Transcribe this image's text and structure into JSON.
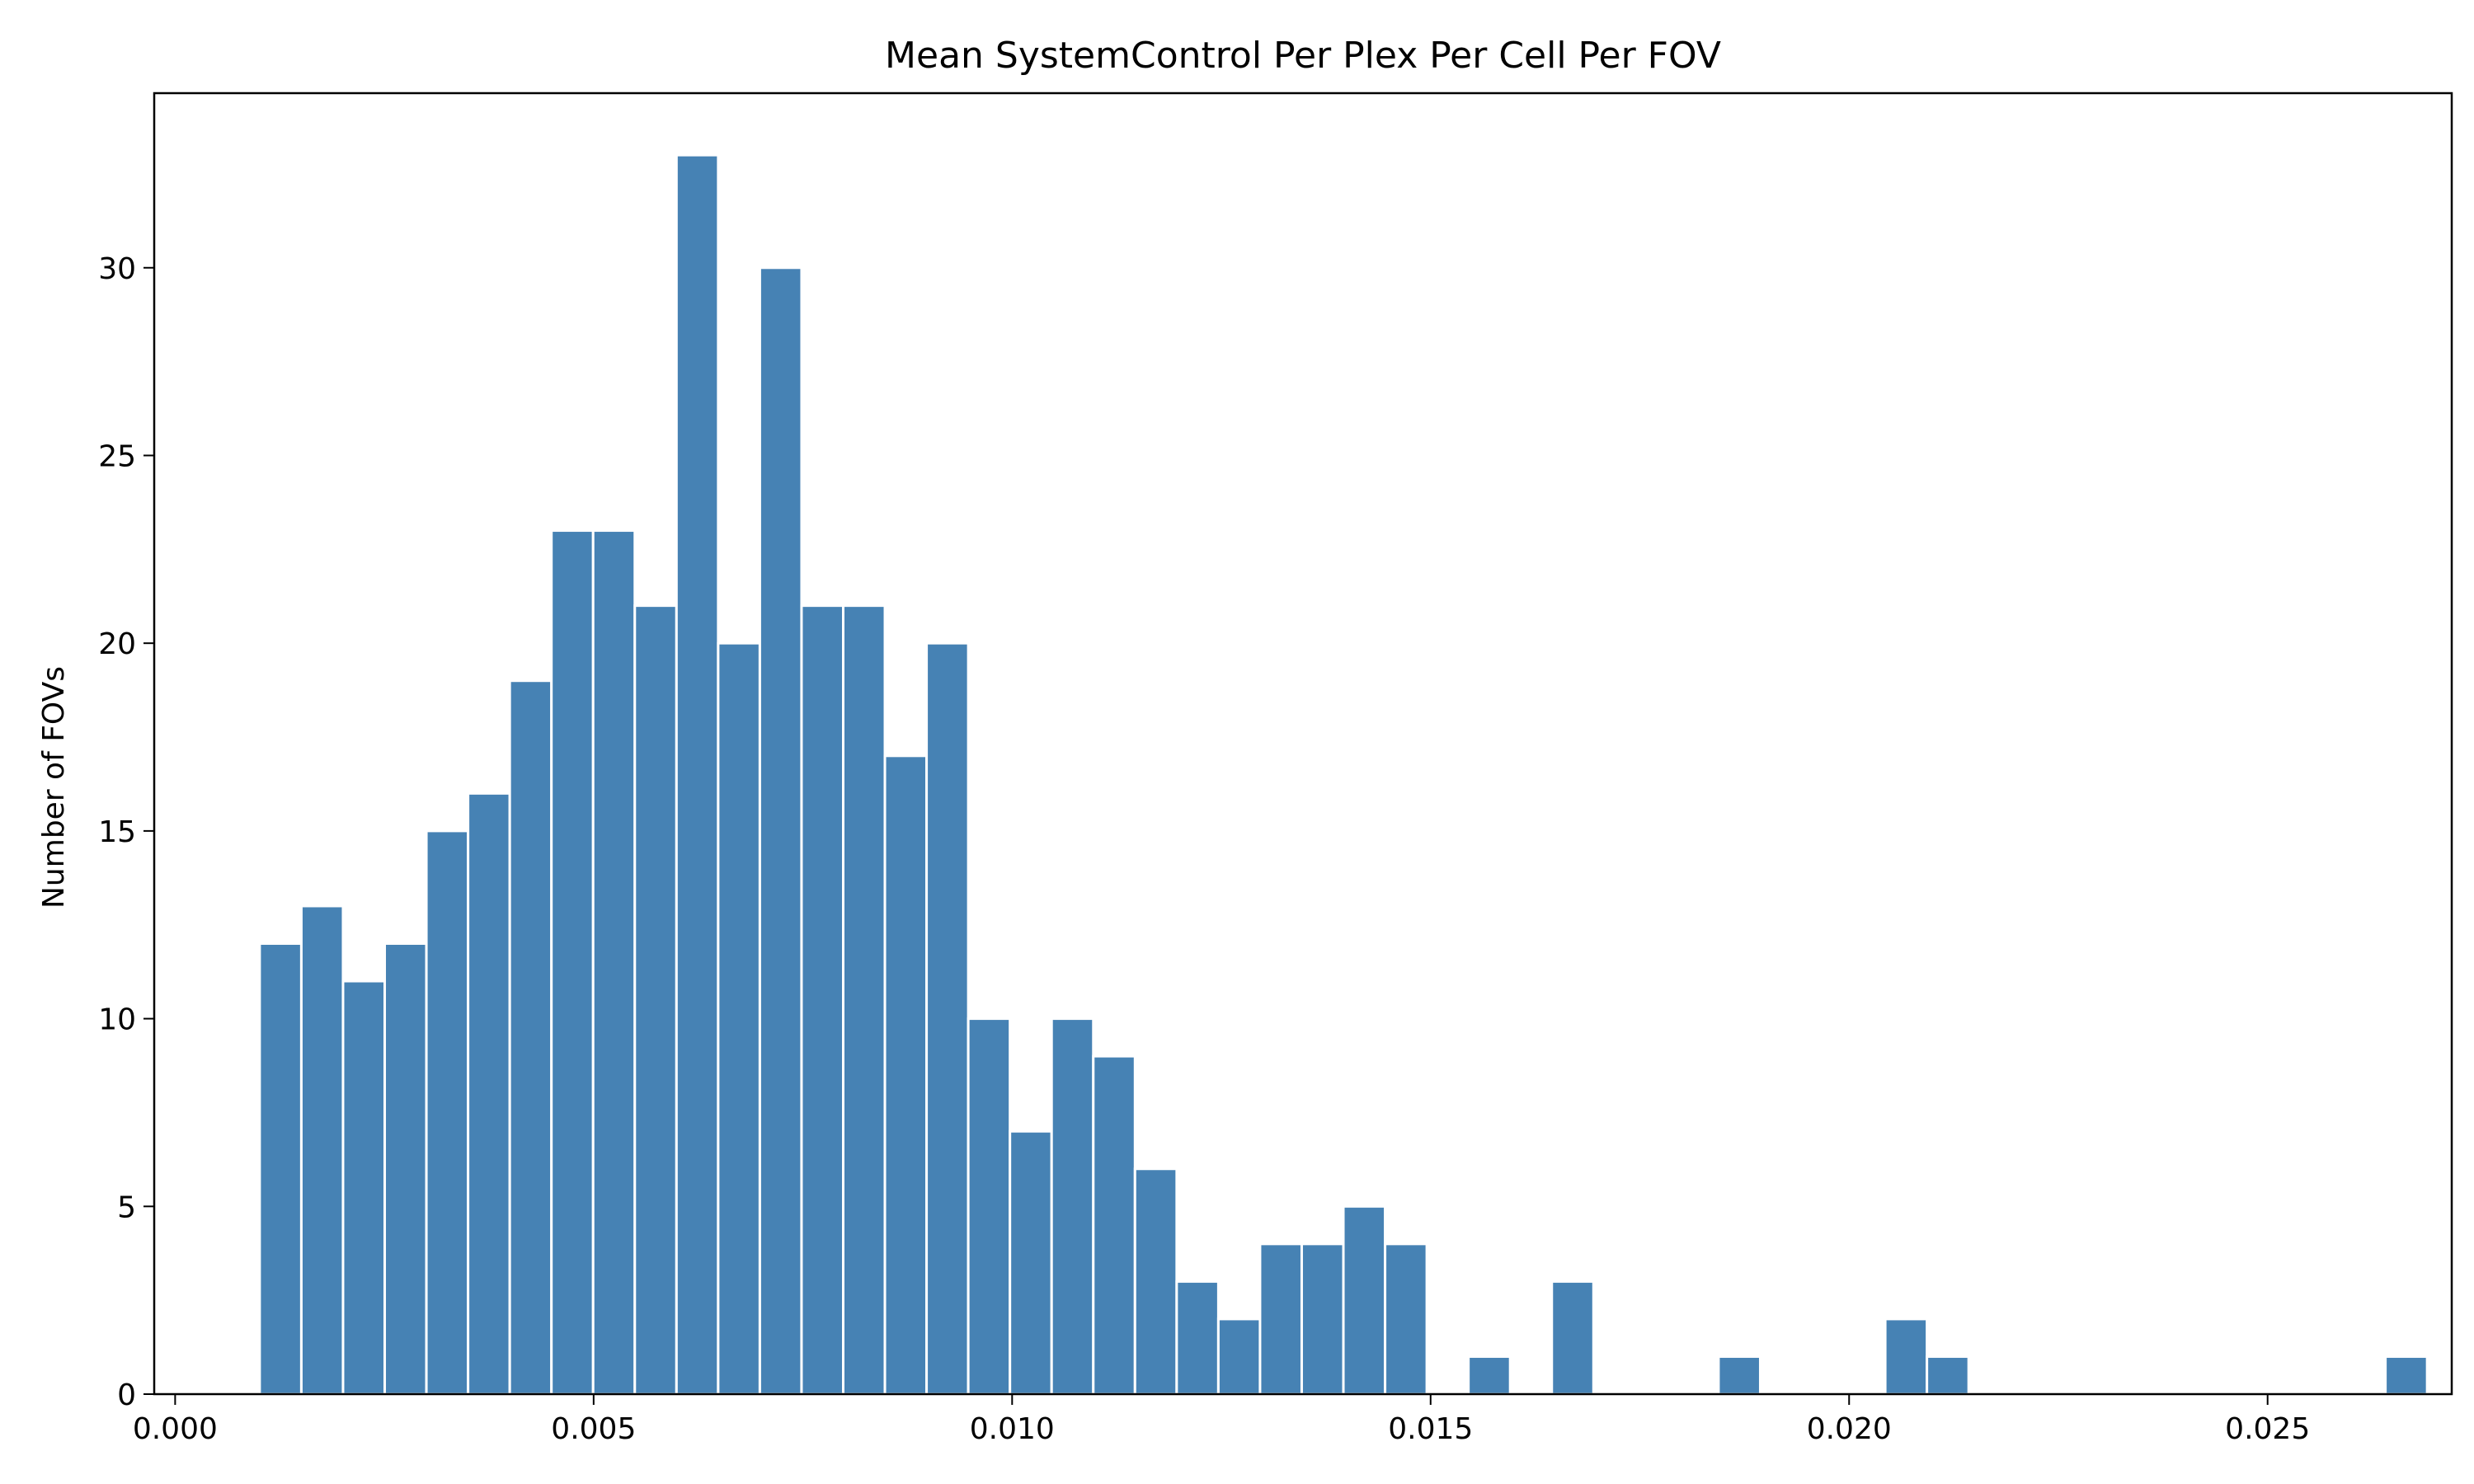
{
  "chart_data": {
    "type": "bar",
    "title": "Mean SystemControl Per Plex Per Cell Per FOV",
    "xlabel": "",
    "ylabel": "Number of FOVs",
    "xlim": [
      -0.00025,
      0.0272
    ],
    "ylim": [
      0,
      34.65
    ],
    "xticks": [
      0.0,
      0.005,
      0.01,
      0.015,
      0.02,
      0.025
    ],
    "xtick_labels": [
      "0.000",
      "0.005",
      "0.010",
      "0.015",
      "0.020",
      "0.025"
    ],
    "yticks": [
      0,
      5,
      10,
      15,
      20,
      25,
      30
    ],
    "ytick_labels": [
      "0",
      "5",
      "10",
      "15",
      "20",
      "25",
      "30"
    ],
    "bar_color": "#4682b4",
    "bin_start": 0.00101,
    "bin_width": 0.000498,
    "counts": [
      12,
      13,
      11,
      12,
      15,
      16,
      19,
      23,
      23,
      21,
      33,
      20,
      30,
      21,
      21,
      17,
      20,
      10,
      7,
      10,
      9,
      6,
      3,
      2,
      4,
      4,
      5,
      4,
      0,
      1,
      0,
      3,
      0,
      0,
      0,
      1,
      0,
      0,
      0,
      2,
      1,
      0,
      0,
      0,
      0,
      0,
      0,
      0,
      0,
      0,
      0,
      1
    ],
    "grid": false,
    "legend": "none"
  }
}
